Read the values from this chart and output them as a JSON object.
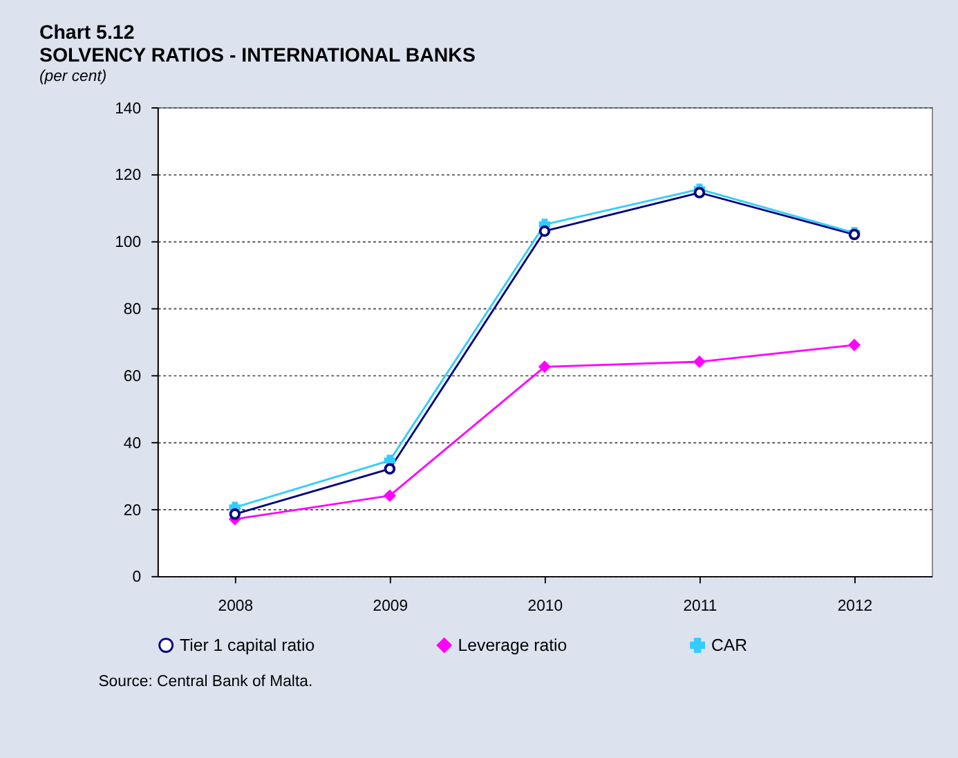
{
  "chart_data": {
    "type": "line",
    "title": "Chart 5.12\nSOLVENCY RATIOS - INTERNATIONAL BANKS",
    "subtitle": "(per cent)",
    "categories": [
      "2008",
      "2009",
      "2010",
      "2011",
      "2012"
    ],
    "series": [
      {
        "name": "Tier 1 capital ratio",
        "color": "#000080",
        "marker": "circle",
        "values": [
          18.5,
          32,
          103,
          114.5,
          102
        ]
      },
      {
        "name": "Leverage ratio",
        "color": "#ff00ff",
        "marker": "diamond",
        "values": [
          17,
          24,
          62.5,
          64,
          69
        ]
      },
      {
        "name": "CAR",
        "color": "#33ccff",
        "marker": "cross",
        "values": [
          20.5,
          34.5,
          105,
          115.5,
          102.5
        ]
      }
    ],
    "ylim": [
      0,
      140
    ],
    "yticks": [
      0,
      20,
      40,
      60,
      80,
      100,
      120,
      140
    ],
    "grid": "y",
    "legend": "bottom",
    "line_style": "solid",
    "annotations": [
      "Source: Central Bank of Malta."
    ]
  }
}
